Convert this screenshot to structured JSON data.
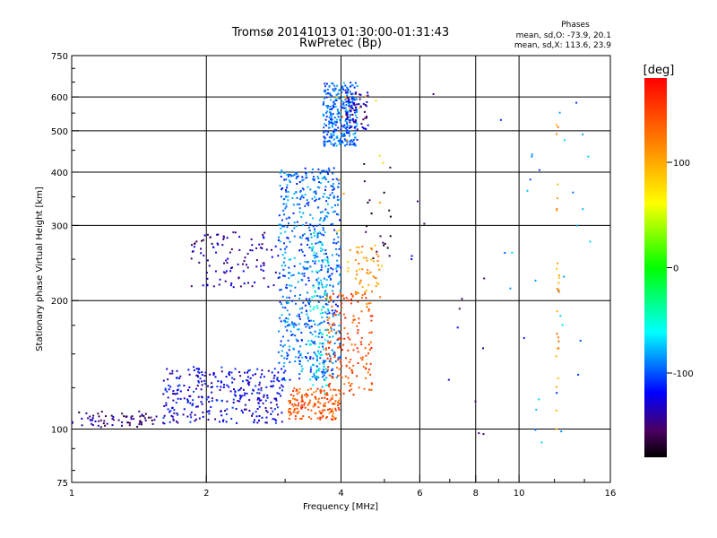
{
  "chart_data": {
    "type": "scatter",
    "title": "Tromsø 20141013 01:30:00-01:31:43",
    "subtitle": "RwPretec (Bp)",
    "xlabel": "Frequency [MHz]",
    "ylabel": "Stationary phase Virtual Height [km]",
    "x_scale": "log",
    "y_scale": "log",
    "xlim": [
      1,
      16
    ],
    "ylim": [
      75,
      750
    ],
    "x_ticks": [
      "1",
      "2",
      "4",
      "6",
      "8",
      "10",
      "16"
    ],
    "y_ticks": [
      "750",
      "600",
      "500",
      "400",
      "300",
      "200",
      "100",
      "75"
    ],
    "grid": true,
    "phases_header": "Phases",
    "phase_stats": [
      "mean, sd,O: -73.9, 20.1",
      "mean, sd,X: 113.6, 23.9"
    ],
    "colorbar": {
      "title": "[deg]",
      "range": [
        -180,
        180
      ],
      "ticks": [
        "100",
        "0",
        "-100"
      ]
    },
    "clusters": [
      {
        "x": [
          1.0,
          1.55
        ],
        "y": [
          101,
          110
        ],
        "phase": -150,
        "count": 70
      },
      {
        "x": [
          1.6,
          3.0
        ],
        "y": [
          103,
          140
        ],
        "phase": -125,
        "count": 320
      },
      {
        "x": [
          1.85,
          2.9
        ],
        "y": [
          215,
          290
        ],
        "phase": -140,
        "count": 110
      },
      {
        "x": [
          2.9,
          4.0
        ],
        "y": [
          130,
          410
        ],
        "phase": -95,
        "count": 650
      },
      {
        "x": [
          3.4,
          3.75
        ],
        "y": [
          120,
          290
        ],
        "phase": -60,
        "count": 90
      },
      {
        "x": [
          3.65,
          4.35
        ],
        "y": [
          460,
          650
        ],
        "phase": -95,
        "count": 300
      },
      {
        "x": [
          4.1,
          4.6
        ],
        "y": [
          500,
          620
        ],
        "phase": -140,
        "count": 60
      },
      {
        "x": [
          3.05,
          4.0
        ],
        "y": [
          105,
          125
        ],
        "phase": 140,
        "count": 160
      },
      {
        "x": [
          3.7,
          4.7
        ],
        "y": [
          120,
          210
        ],
        "phase": 145,
        "count": 170
      },
      {
        "x": [
          4.3,
          4.9
        ],
        "y": [
          195,
          270
        ],
        "phase": 110,
        "count": 50
      },
      {
        "x": [
          3.9,
          5.0
        ],
        "y": [
          230,
          640
        ],
        "phase": 100,
        "count": 25
      },
      {
        "x": [
          4.4,
          5.2
        ],
        "y": [
          250,
          420
        ],
        "phase": -170,
        "count": 20
      },
      {
        "x": [
          5.2,
          8.6
        ],
        "y": [
          95,
          650
        ],
        "phase": -135,
        "count": 14
      },
      {
        "x": [
          9.0,
          14.5
        ],
        "y": [
          88,
          630
        ],
        "phase": -90,
        "count": 32
      },
      {
        "x": [
          12.1,
          12.3
        ],
        "y": [
          85,
          560
        ],
        "phase": 110,
        "count": 26
      }
    ]
  }
}
